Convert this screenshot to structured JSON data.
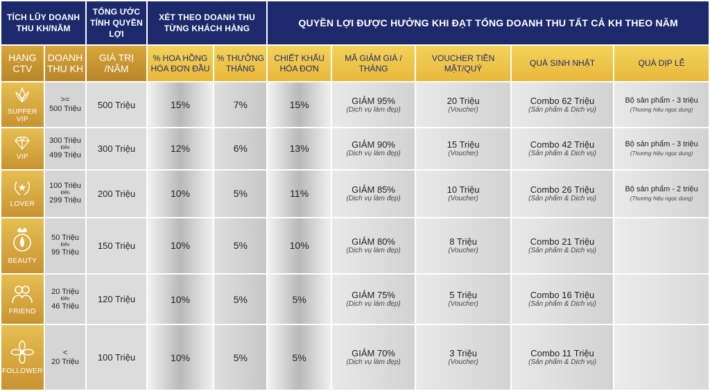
{
  "header": {
    "col_accumulate": "TÍCH LŨY DOANH THU KH/NĂM",
    "col_estimate": "TỔNG ƯỚC TÍNH QUYỀN LỢI",
    "col_by_customer": "XÉT THEO DOANH THU TỪNG KHÁCH HÀNG",
    "col_benefits": "QUYỀN LỢI ĐƯỢC HƯỞNG KHI ĐẠT TỔNG DOANH THU  TẤT CẢ KH THEO NĂM"
  },
  "subheader": {
    "tier": "HẠNG CTV",
    "revenue": "DOANH THU KH",
    "value": "GIÁ TRỊ /NĂM",
    "first_commission": "% HOA HỒNG HÓA ĐƠN ĐẦU",
    "monthly_bonus": "% THƯỞNG THÁNG",
    "invoice_discount": "CHIẾT KHẤU HÓA ĐƠN",
    "discount_code": "MÃ GIẢM GIÁ / THÁNG",
    "cash_voucher": "VOUCHER TIỀN MẶT/QUÝ",
    "birthday_gift": "QUÀ SINH NHẬT",
    "holiday_gift": "QUÀ DỊP LỄ"
  },
  "rows": [
    {
      "tier": {
        "name": "SUPPER VIP",
        "icon": "lotus-crown-icon"
      },
      "revenue": {
        "line1": ">=",
        "mid": "",
        "line2": "500 Triệu"
      },
      "value": "500 Triệu",
      "first_commission": "15%",
      "monthly_bonus": "7%",
      "invoice_discount": "15%",
      "discount": {
        "title": "GIẢM 95%",
        "note": "(Dịch vụ làm đẹp)"
      },
      "voucher": {
        "title": "20 Triệu",
        "note": "(Voucher)"
      },
      "birthday": {
        "title": "Combo 62 Triệu",
        "note": "(Sản phẩm & Dịch vụ)"
      },
      "holiday": {
        "title": "Bộ sản phẩm - 3 triệu",
        "note": "(Thương hiệu ngọc dung)"
      }
    },
    {
      "tier": {
        "name": "VIP",
        "icon": "diamond-icon"
      },
      "revenue": {
        "line1": "300 Triệu",
        "mid": "Đến",
        "line2": "499 Triệu"
      },
      "value": "300 Triệu",
      "first_commission": "12%",
      "monthly_bonus": "6%",
      "invoice_discount": "13%",
      "discount": {
        "title": "GIẢM 90%",
        "note": "(Dịch vụ làm đẹp)"
      },
      "voucher": {
        "title": "15 Triệu",
        "note": "(Voucher)"
      },
      "birthday": {
        "title": "Combo 42 Triệu",
        "note": "(Sản phẩm & Dịch vụ)"
      },
      "holiday": {
        "title": "Bộ sản phẩm - 3 triệu",
        "note": "(Thương hiệu ngọc dung)"
      }
    },
    {
      "tier": {
        "name": "LOVER",
        "icon": "laurel-star-icon"
      },
      "revenue": {
        "line1": "100 Triệu",
        "mid": "Đến",
        "line2": "299 Triệu"
      },
      "value": "200 Triệu",
      "first_commission": "10%",
      "monthly_bonus": "5%",
      "invoice_discount": "11%",
      "discount": {
        "title": "GIẢM 85%",
        "note": "(Dịch vụ làm đẹp)"
      },
      "voucher": {
        "title": "10 Triệu",
        "note": "(Voucher)"
      },
      "birthday": {
        "title": "Combo 26 Triệu",
        "note": "(Sản phẩm & Dịch vụ)"
      },
      "holiday": {
        "title": "Bộ sản phẩm - 2 triệu",
        "note": "(Thương hiệu ngọc dung)"
      }
    },
    {
      "tier": {
        "name": "BEAUTY",
        "icon": "crown-drop-icon"
      },
      "revenue": {
        "line1": "50 Triệu",
        "mid": "Đến",
        "line2": "99 Triệu"
      },
      "value": "150 Triệu",
      "first_commission": "10%",
      "monthly_bonus": "5%",
      "invoice_discount": "10%",
      "discount": {
        "title": "GIẢM 80%",
        "note": "(Dịch vụ làm đẹp)"
      },
      "voucher": {
        "title": "8 Triệu",
        "note": "(Voucher)"
      },
      "birthday": {
        "title": "Combo 21 Triệu",
        "note": "(Sản phẩm & Dịch vụ)"
      },
      "holiday": {
        "title": "",
        "note": ""
      }
    },
    {
      "tier": {
        "name": "FRIEND",
        "icon": "people-icon"
      },
      "revenue": {
        "line1": "20 Triệu",
        "mid": "Đến",
        "line2": "46 Triệu"
      },
      "value": "120 Triệu",
      "first_commission": "10%",
      "monthly_bonus": "5%",
      "invoice_discount": "5%",
      "discount": {
        "title": "GIẢM 75%",
        "note": "(Dịch vụ làm đẹp)"
      },
      "voucher": {
        "title": "5 Triệu",
        "note": "(Voucher)"
      },
      "birthday": {
        "title": "Combo 16 Triệu",
        "note": "(Sản phẩm & Dịch vụ)"
      },
      "holiday": {
        "title": "",
        "note": ""
      }
    },
    {
      "tier": {
        "name": "FOLLOWER",
        "icon": "flower-icon"
      },
      "revenue": {
        "line1": "<",
        "mid": "",
        "line2": "20 Triệu"
      },
      "value": "100 Triệu",
      "first_commission": "10%",
      "monthly_bonus": "5%",
      "invoice_discount": "5%",
      "discount": {
        "title": "GIẢM 70%",
        "note": "(Dịch vụ làm đẹp)"
      },
      "voucher": {
        "title": "3 Triệu",
        "note": "(Voucher)"
      },
      "birthday": {
        "title": "Combo 11 Triệu",
        "note": "(Sản phẩm & Dịch vụ)"
      },
      "holiday": {
        "title": "",
        "note": ""
      }
    }
  ],
  "colors": {
    "navy": "#1c2a6c",
    "gold": "#e8b83c",
    "tier_gold": "#c89330",
    "grey": "#d5d5d5"
  }
}
